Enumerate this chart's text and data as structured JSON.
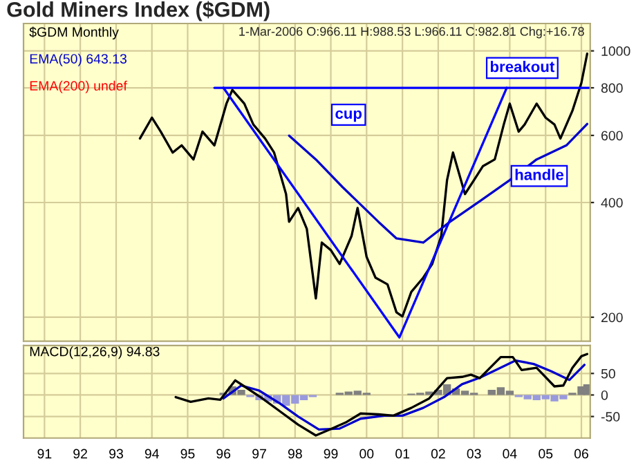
{
  "chart_data": [
    {
      "type": "line",
      "title": "Gold Miners Index ($GDM)",
      "log": true,
      "grid": true,
      "legend": "top left",
      "tick_labels": "y",
      "xlim": [
        "1990-06",
        "2006-04"
      ],
      "xticks": [
        {
          "value": "1991-01",
          "label": null
        },
        {
          "value": "1992-01",
          "label": null
        },
        {
          "value": "1993-01",
          "label": null
        },
        {
          "value": "1994-01",
          "label": null
        },
        {
          "value": "1995-01",
          "label": null
        },
        {
          "value": "1996-01",
          "label": null
        },
        {
          "value": "1997-01",
          "label": null
        },
        {
          "value": "1998-01",
          "label": null
        },
        {
          "value": "1999-01",
          "label": null
        },
        {
          "value": "2000-01",
          "label": null
        },
        {
          "value": "2001-01",
          "label": null
        },
        {
          "value": "2002-01",
          "label": null
        },
        {
          "value": "2003-01",
          "label": null
        },
        {
          "value": "2004-01",
          "label": null
        },
        {
          "value": "2005-01",
          "label": null
        },
        {
          "value": "2006-01",
          "label": null
        }
      ],
      "ylim": [
        173,
        1180
      ],
      "yticks": [
        200,
        400,
        600,
        800,
        1000
      ],
      "annotations": [
        "1-Mar-2006 O:966.11 H:988.53 L:966.11 C:982.81 Chg:+16.78",
        {
          "text": "cup",
          "x": "1999-07",
          "y": 680
        },
        "breakout",
        "handle"
      ],
      "series": [
        {
          "name": "$GDM Monthly",
          "color": "#000000",
          "x": [
            "1993-09",
            "1994-01",
            "1994-04",
            "1994-08",
            "1994-11",
            "1995-03",
            "1995-06",
            "1995-10",
            "1996-02",
            "1996-04",
            "1996-08",
            "1996-11",
            "1997-03",
            "1997-06",
            "1997-10",
            "1997-11",
            "1998-02",
            "1998-05",
            "1998-08",
            "1998-10",
            "1999-01",
            "1999-04",
            "1999-08",
            "1999-10",
            "2000-01",
            "2000-04",
            "2000-08",
            "2000-11",
            "2001-01",
            "2001-04",
            "2001-08",
            "2001-11",
            "2002-02",
            "2002-04",
            "2002-06",
            "2002-10",
            "2003-01",
            "2003-04",
            "2003-08",
            "2003-11",
            "2004-01",
            "2004-04",
            "2004-06",
            "2004-10",
            "2005-01",
            "2005-04",
            "2005-06",
            "2005-10",
            "2006-01",
            "2006-03"
          ],
          "values": [
            589,
            668,
            614,
            541,
            565,
            519,
            614,
            565,
            727,
            790,
            727,
            641,
            589,
            541,
            421,
            356,
            387,
            341,
            224,
            314,
            300,
            276,
            327,
            387,
            288,
            254,
            244,
            206,
            201,
            233,
            254,
            276,
            327,
            458,
            541,
            421,
            458,
            498,
            519,
            641,
            727,
            614,
            641,
            727,
            668,
            641,
            589,
            696,
            824,
            983
          ]
        },
        {
          "name": "EMA(50) 643.13",
          "color": "#0000cc",
          "x": [
            "1997-11",
            "1998-08",
            "1999-05",
            "2000-05",
            "2000-11",
            "2001-08",
            "2002-05",
            "2003-03",
            "2004-01",
            "2004-10",
            "2005-08",
            "2006-03"
          ],
          "values": [
            599,
            519,
            439,
            356,
            322,
            314,
            356,
            403,
            458,
            519,
            565,
            643
          ]
        },
        {
          "name": "EMA(200) undef",
          "color": "#ff0000"
        },
        {
          "color": "#0000ff",
          "x": [
            "1995-10",
            "2006-04"
          ],
          "values": [
            800,
            800
          ]
        },
        {
          "color": "#0000ff",
          "x": [
            "1996-01",
            "2000-12",
            "2003-12"
          ],
          "values": [
            800,
            177,
            800
          ]
        }
      ]
    },
    {
      "type": "line",
      "grid": true,
      "legend": "top left",
      "xlim": [
        "1990-06",
        "2006-04"
      ],
      "xticks": [
        {
          "value": "1991-01",
          "label": "91"
        },
        {
          "value": "1992-01",
          "label": "92"
        },
        {
          "value": "1993-01",
          "label": "93"
        },
        {
          "value": "1994-01",
          "label": "94"
        },
        {
          "value": "1995-01",
          "label": "95"
        },
        {
          "value": "1996-01",
          "label": "96"
        },
        {
          "value": "1997-01",
          "label": "97"
        },
        {
          "value": "1998-01",
          "label": "98"
        },
        {
          "value": "1999-01",
          "label": "99"
        },
        {
          "value": "2000-01",
          "label": "00"
        },
        {
          "value": "2001-01",
          "label": "01"
        },
        {
          "value": "2002-01",
          "label": "02"
        },
        {
          "value": "2003-01",
          "label": "03"
        },
        {
          "value": "2004-01",
          "label": "04"
        },
        {
          "value": "2005-01",
          "label": "05"
        },
        {
          "value": "2006-01",
          "label": "06"
        }
      ],
      "ylim": [
        -100,
        115
      ],
      "yticks": [
        -50,
        0,
        50
      ],
      "series": [
        {
          "type": "bar",
          "x": [
            "1996-01",
            "1996-04",
            "1996-07",
            "1996-10",
            "1997-01",
            "1997-04",
            "1997-07",
            "1997-10",
            "1998-01",
            "1998-04",
            "1998-07",
            "1999-04",
            "1999-07",
            "1999-10",
            "2000-01",
            "2001-04",
            "2001-07",
            "2001-10",
            "2002-01",
            "2002-04",
            "2002-07",
            "2002-10",
            "2003-01",
            "2003-07",
            "2003-10",
            "2004-01",
            "2004-04",
            "2004-07",
            "2004-10",
            "2005-01",
            "2005-04",
            "2005-07",
            "2005-10",
            "2006-01",
            "2006-03"
          ],
          "values": [
            5,
            20,
            12,
            -5,
            -12,
            -15,
            -20,
            -25,
            -20,
            -12,
            -5,
            5,
            8,
            10,
            5,
            3,
            5,
            8,
            12,
            25,
            15,
            10,
            5,
            12,
            18,
            10,
            -5,
            -10,
            -12,
            -10,
            -15,
            -10,
            5,
            20,
            25
          ],
          "colors": [
            "#808080",
            "#808080",
            "#808080",
            "#9999dd",
            "#9999dd",
            "#9999dd",
            "#9999dd",
            "#9999dd",
            "#9999dd",
            "#9999dd",
            "#9999dd",
            "#808080",
            "#808080",
            "#808080",
            "#808080",
            "#808080",
            "#808080",
            "#808080",
            "#808080",
            "#808080",
            "#808080",
            "#808080",
            "#808080",
            "#808080",
            "#808080",
            "#808080",
            "#9999dd",
            "#9999dd",
            "#9999dd",
            "#9999dd",
            "#9999dd",
            "#9999dd",
            "#808080",
            "#808080",
            "#808080"
          ]
        },
        {
          "color": "#0000cc",
          "x": [
            "1996-01",
            "1996-07",
            "1997-01",
            "1997-08",
            "1998-02",
            "1998-09",
            "1999-04",
            "1999-11",
            "2000-07",
            "2001-01",
            "2001-08",
            "2002-03",
            "2002-09",
            "2003-03",
            "2003-09",
            "2004-03",
            "2004-09",
            "2005-03",
            "2005-09",
            "2006-02"
          ],
          "values": [
            -8,
            22,
            10,
            -20,
            -50,
            -80,
            -78,
            -55,
            -48,
            -48,
            -30,
            -5,
            25,
            40,
            60,
            80,
            72,
            55,
            35,
            70
          ]
        },
        {
          "name": "MACD(12,26,9) 94.83",
          "color": "#000000",
          "x": [
            "1994-09",
            "1995-02",
            "1995-08",
            "1995-12",
            "1996-05",
            "1996-08",
            "1997-02",
            "1997-07",
            "1998-02",
            "1998-08",
            "1999-01",
            "1999-06",
            "1999-11",
            "2000-05",
            "2000-10",
            "2001-04",
            "2001-10",
            "2002-04",
            "2002-09",
            "2002-12",
            "2003-03",
            "2003-10",
            "2004-02",
            "2004-05",
            "2004-10",
            "2005-04",
            "2005-07",
            "2005-10",
            "2006-01",
            "2006-03"
          ],
          "values": [
            -5,
            -16,
            -8,
            -11,
            34,
            20,
            -8,
            -33,
            -69,
            -94,
            -79,
            -64,
            -43,
            -45,
            -48,
            -30,
            -8,
            39,
            42,
            47,
            39,
            88,
            88,
            58,
            63,
            20,
            22,
            63,
            90,
            95
          ]
        }
      ]
    }
  ]
}
